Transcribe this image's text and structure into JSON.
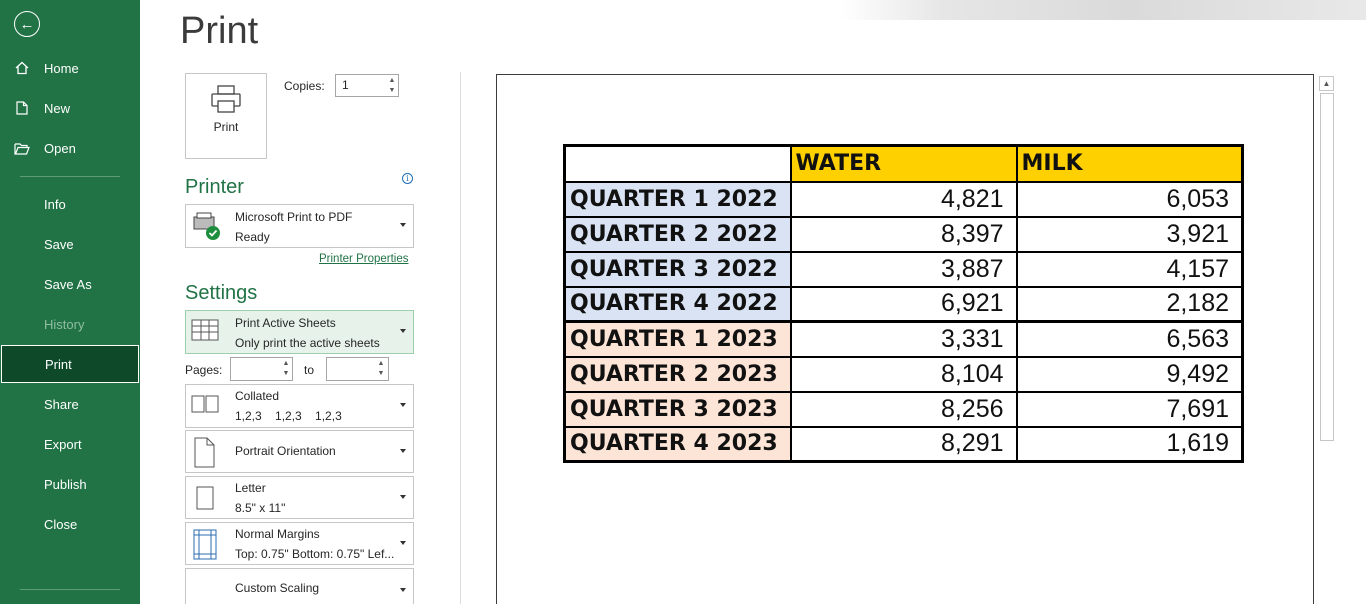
{
  "sidebar": {
    "items": [
      {
        "label": "Home",
        "icon": "home-icon"
      },
      {
        "label": "New",
        "icon": "new-file-icon"
      },
      {
        "label": "Open",
        "icon": "open-folder-icon"
      },
      {
        "label": "Info"
      },
      {
        "label": "Save"
      },
      {
        "label": "Save As"
      },
      {
        "label": "History"
      },
      {
        "label": "Print"
      },
      {
        "label": "Share"
      },
      {
        "label": "Export"
      },
      {
        "label": "Publish"
      },
      {
        "label": "Close"
      }
    ],
    "active_item": "Print",
    "disabled_item": "History",
    "bg_color": "#217346"
  },
  "page_title": "Print",
  "print_button_label": "Print",
  "copies": {
    "label": "Copies:",
    "value": "1"
  },
  "printer": {
    "heading": "Printer",
    "name": "Microsoft Print to PDF",
    "status": "Ready",
    "properties_link": "Printer Properties"
  },
  "settings": {
    "heading": "Settings",
    "print_what": {
      "title": "Print Active Sheets",
      "subtitle": "Only print the active sheets"
    },
    "pages_label": "Pages:",
    "to_label": "to",
    "collation": {
      "title": "Collated",
      "subtitle": "1,2,3    1,2,3    1,2,3"
    },
    "orientation": {
      "title": "Portrait Orientation"
    },
    "paper": {
      "title": "Letter",
      "subtitle": "8.5\" x 11\""
    },
    "margins": {
      "title": "Normal Margins",
      "subtitle": "Top: 0.75\" Bottom: 0.75\" Lef..."
    },
    "scaling": {
      "title": "Custom Scaling"
    }
  },
  "preview": {
    "headers": [
      "",
      "WATER",
      "MILK"
    ],
    "rows": [
      {
        "label": "QUARTER 1 2022",
        "water": "4,821",
        "milk": "6,053"
      },
      {
        "label": "QUARTER 2 2022",
        "water": "8,397",
        "milk": "3,921"
      },
      {
        "label": "QUARTER 3 2022",
        "water": "3,887",
        "milk": "4,157"
      },
      {
        "label": "QUARTER 4 2022",
        "water": "6,921",
        "milk": "2,182"
      },
      {
        "label": "QUARTER 1 2023",
        "water": "3,331",
        "milk": "6,563"
      },
      {
        "label": "QUARTER 2 2023",
        "water": "8,104",
        "milk": "9,492"
      },
      {
        "label": "QUARTER 3 2023",
        "water": "8,256",
        "milk": "7,691"
      },
      {
        "label": "QUARTER 4 2023",
        "water": "8,291",
        "milk": "1,619"
      }
    ],
    "colors": {
      "header": "#ffd000",
      "year_2022": "#dae3f3",
      "year_2023": "#fce4d6"
    }
  }
}
